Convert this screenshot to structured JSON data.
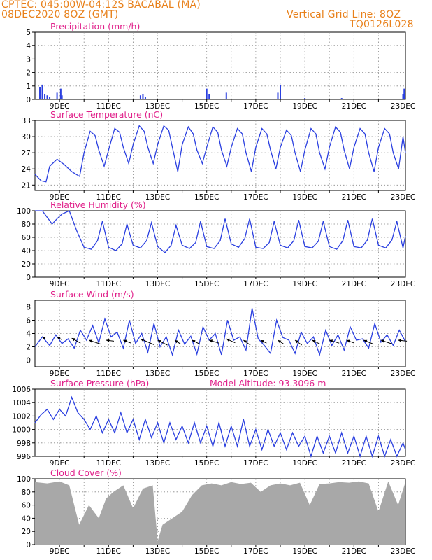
{
  "header": {
    "line1": "CPTEC:   045:00W-04:12S   BACABAL (MA)",
    "line2": "08DEC2020 8OZ (GMT)",
    "grid_note": "Vertical Grid Line: 8OZ",
    "run_code": "TQ0126L028"
  },
  "altitude_text": "Model Altitude: 93.3096 m",
  "colors": {
    "header": "#e8801a",
    "title": "#e0208a",
    "line": "#2a3fe0",
    "cloud_fill": "#a8a8a8",
    "grid": "#888888"
  },
  "x_ticks": [
    "9DEC",
    "11DEC",
    "13DEC",
    "15DEC",
    "17DEC",
    "19DEC",
    "21DEC",
    "23DEC"
  ],
  "chart_data": [
    {
      "id": "precip",
      "type": "bar",
      "title": "Precipitation (mm/h)",
      "ylim": [
        0,
        5
      ],
      "yticks": [
        0,
        1,
        2,
        3,
        4,
        5
      ],
      "grid": true,
      "x": [
        8.2,
        8.3,
        8.4,
        8.5,
        8.6,
        8.9,
        9.05,
        9.1,
        12.3,
        12.4,
        12.5,
        15.0,
        15.1,
        15.8,
        17.9,
        18.0,
        19.0,
        20.5,
        23.0,
        23.05
      ],
      "values": [
        0.9,
        1.1,
        0.4,
        0.3,
        0.2,
        0.5,
        0.8,
        0.3,
        0.3,
        0.4,
        0.2,
        0.8,
        0.4,
        0.5,
        0.5,
        1.1,
        0.1,
        0.1,
        0.4,
        0.8
      ]
    },
    {
      "id": "temp",
      "type": "line",
      "title": "Surface Temperature (nC)",
      "ylim": [
        20,
        33
      ],
      "yticks": [
        21,
        24,
        27,
        30,
        33
      ],
      "grid": true,
      "x": [
        8.0,
        8.25,
        8.45,
        8.6,
        8.9,
        9.2,
        9.5,
        9.82,
        10.0,
        10.25,
        10.45,
        10.6,
        10.82,
        11.0,
        11.25,
        11.45,
        11.6,
        11.82,
        12.0,
        12.25,
        12.45,
        12.6,
        12.82,
        13.0,
        13.25,
        13.45,
        13.6,
        13.82,
        14.0,
        14.25,
        14.45,
        14.6,
        14.82,
        15.0,
        15.25,
        15.45,
        15.6,
        15.82,
        16.0,
        16.25,
        16.45,
        16.6,
        16.82,
        17.0,
        17.25,
        17.45,
        17.6,
        17.82,
        18.0,
        18.25,
        18.45,
        18.6,
        18.82,
        19.0,
        19.25,
        19.45,
        19.6,
        19.82,
        20.0,
        20.25,
        20.45,
        20.6,
        20.82,
        21.0,
        21.25,
        21.45,
        21.6,
        21.82,
        22.0,
        22.25,
        22.45,
        22.6,
        22.82,
        23.0,
        23.1
      ],
      "values": [
        23.0,
        21.8,
        21.6,
        24.5,
        25.8,
        24.8,
        23.5,
        22.6,
        27.0,
        31.0,
        30.2,
        27.5,
        24.5,
        27.5,
        31.5,
        30.8,
        28.0,
        25.0,
        28.5,
        32.0,
        31.0,
        28.0,
        25.0,
        28.5,
        32.0,
        31.2,
        28.0,
        23.5,
        28.5,
        31.8,
        30.5,
        27.5,
        25.0,
        28.0,
        31.8,
        30.8,
        27.5,
        24.5,
        28.0,
        31.5,
        30.5,
        27.0,
        23.5,
        28.0,
        31.5,
        30.5,
        27.5,
        24.0,
        28.0,
        31.2,
        30.2,
        27.0,
        23.5,
        27.5,
        31.5,
        30.5,
        27.0,
        24.0,
        28.0,
        31.8,
        30.8,
        27.5,
        24.0,
        28.0,
        31.5,
        30.5,
        27.0,
        23.5,
        28.0,
        31.5,
        30.5,
        27.0,
        24.0,
        30.0,
        27.0
      ]
    },
    {
      "id": "rh",
      "type": "line",
      "title": "Relative Humidity (%)",
      "ylim": [
        0,
        100
      ],
      "yticks": [
        0,
        20,
        40,
        60,
        80,
        100
      ],
      "grid": true,
      "x": [
        8.0,
        8.3,
        8.5,
        8.7,
        8.9,
        9.1,
        9.4,
        9.7,
        10.0,
        10.3,
        10.55,
        10.75,
        11.0,
        11.3,
        11.55,
        11.75,
        12.0,
        12.3,
        12.55,
        12.75,
        13.0,
        13.3,
        13.55,
        13.75,
        14.0,
        14.3,
        14.55,
        14.75,
        15.0,
        15.3,
        15.55,
        15.75,
        16.0,
        16.3,
        16.55,
        16.75,
        17.0,
        17.3,
        17.55,
        17.75,
        18.0,
        18.3,
        18.55,
        18.75,
        19.0,
        19.3,
        19.55,
        19.75,
        20.0,
        20.3,
        20.55,
        20.75,
        21.0,
        21.3,
        21.55,
        21.75,
        22.0,
        22.3,
        22.55,
        22.75,
        23.0,
        23.1
      ],
      "values": [
        100,
        100,
        90,
        80,
        88,
        95,
        100,
        70,
        45,
        42,
        55,
        84,
        45,
        40,
        50,
        80,
        48,
        44,
        55,
        82,
        46,
        37,
        48,
        78,
        48,
        43,
        52,
        84,
        46,
        43,
        55,
        88,
        50,
        45,
        58,
        88,
        45,
        43,
        52,
        84,
        48,
        44,
        55,
        86,
        46,
        44,
        54,
        84,
        46,
        42,
        55,
        86,
        46,
        44,
        56,
        88,
        48,
        44,
        56,
        84,
        44,
        62
      ]
    },
    {
      "id": "wind",
      "type": "line",
      "title": "Surface Wind (m/s)",
      "ylim": [
        -1,
        9
      ],
      "yticks": [
        0,
        2,
        4,
        6,
        8
      ],
      "grid": true,
      "x": [
        8.0,
        8.3,
        8.6,
        8.85,
        9.1,
        9.35,
        9.6,
        9.85,
        10.1,
        10.35,
        10.6,
        10.85,
        11.1,
        11.35,
        11.6,
        11.85,
        12.1,
        12.35,
        12.6,
        12.85,
        13.1,
        13.35,
        13.6,
        13.85,
        14.1,
        14.35,
        14.6,
        14.85,
        15.1,
        15.35,
        15.6,
        15.85,
        16.1,
        16.35,
        16.6,
        16.85,
        17.1,
        17.35,
        17.6,
        17.85,
        18.1,
        18.35,
        18.6,
        18.85,
        19.1,
        19.35,
        19.6,
        19.85,
        20.1,
        20.35,
        20.6,
        20.85,
        21.1,
        21.35,
        21.6,
        21.85,
        22.1,
        22.35,
        22.6,
        22.85,
        23.1
      ],
      "values": [
        2.0,
        3.5,
        2.2,
        3.8,
        2.5,
        3.2,
        1.8,
        4.5,
        3.0,
        5.2,
        2.6,
        6.2,
        3.5,
        4.2,
        1.8,
        6.0,
        2.5,
        4.0,
        1.2,
        5.5,
        2.0,
        3.5,
        0.8,
        4.5,
        2.4,
        3.6,
        0.9,
        5.0,
        3.0,
        4.0,
        0.8,
        6.0,
        3.0,
        3.5,
        1.5,
        7.8,
        3.2,
        2.2,
        1.0,
        6.0,
        3.4,
        3.0,
        1.0,
        4.2,
        2.5,
        3.5,
        0.8,
        4.5,
        2.2,
        3.8,
        1.5,
        5.0,
        3.0,
        3.2,
        1.8,
        5.5,
        2.7,
        3.8,
        2.2,
        4.5,
        2.8
      ]
    },
    {
      "id": "pressure",
      "type": "line",
      "title": "Surface Pressure (hPa)",
      "ylim": [
        996,
        1006
      ],
      "yticks": [
        996,
        998,
        1000,
        1002,
        1004,
        1006
      ],
      "grid": true,
      "x": [
        8.0,
        8.25,
        8.5,
        8.75,
        9.0,
        9.25,
        9.5,
        9.75,
        10.0,
        10.25,
        10.5,
        10.75,
        11.0,
        11.25,
        11.5,
        11.75,
        12.0,
        12.25,
        12.5,
        12.75,
        13.0,
        13.25,
        13.5,
        13.75,
        14.0,
        14.25,
        14.5,
        14.75,
        15.0,
        15.25,
        15.5,
        15.75,
        16.0,
        16.25,
        16.5,
        16.75,
        17.0,
        17.25,
        17.5,
        17.75,
        18.0,
        18.25,
        18.5,
        18.75,
        19.0,
        19.25,
        19.5,
        19.75,
        20.0,
        20.25,
        20.5,
        20.75,
        21.0,
        21.25,
        21.5,
        21.75,
        22.0,
        22.25,
        22.5,
        22.75,
        23.0,
        23.1
      ],
      "values": [
        1001.0,
        1002.2,
        1003.0,
        1001.5,
        1003.0,
        1002.0,
        1004.8,
        1002.5,
        1001.5,
        1000.0,
        1002.0,
        999.5,
        1001.5,
        999.5,
        1002.5,
        999.5,
        1001.5,
        998.5,
        1001.5,
        998.8,
        1001.0,
        998.0,
        1001.0,
        998.5,
        1000.5,
        998.0,
        1001.0,
        998.0,
        1000.5,
        997.5,
        1001.0,
        997.5,
        1000.5,
        997.5,
        1001.5,
        997.5,
        1000.0,
        997.0,
        1000.0,
        997.5,
        999.5,
        997.0,
        999.5,
        997.5,
        999.0,
        996.0,
        999.0,
        996.5,
        999.0,
        996.5,
        999.5,
        996.5,
        999.0,
        996.0,
        999.0,
        996.0,
        999.0,
        996.0,
        998.5,
        996.0,
        998.0,
        997.0
      ]
    },
    {
      "id": "cloud",
      "type": "area",
      "title": "Cloud Cover (%)",
      "ylim": [
        0,
        100
      ],
      "yticks": [
        0,
        20,
        40,
        60,
        80,
        100
      ],
      "grid": true,
      "x": [
        8.0,
        8.5,
        9.0,
        9.4,
        9.8,
        10.2,
        10.6,
        10.9,
        11.2,
        11.6,
        12.0,
        12.4,
        12.8,
        13.0,
        13.2,
        13.6,
        14.0,
        14.4,
        14.8,
        15.2,
        15.6,
        16.0,
        16.4,
        16.8,
        17.2,
        17.6,
        18.0,
        18.4,
        18.8,
        19.2,
        19.6,
        20.0,
        20.4,
        20.8,
        21.2,
        21.6,
        22.0,
        22.4,
        22.8,
        23.1
      ],
      "values": [
        95,
        93,
        96,
        90,
        30,
        60,
        40,
        70,
        80,
        90,
        55,
        85,
        90,
        5,
        30,
        40,
        50,
        75,
        90,
        93,
        90,
        95,
        92,
        94,
        80,
        90,
        93,
        90,
        94,
        60,
        92,
        93,
        95,
        94,
        96,
        93,
        50,
        96,
        60,
        95
      ]
    }
  ],
  "wind_arrows": [
    {
      "x": 8.3,
      "y": 3.5,
      "u": 2,
      "v": -1
    },
    {
      "x": 8.9,
      "y": 3.5,
      "u": 5,
      "v": -3
    },
    {
      "x": 9.5,
      "y": 3.3,
      "u": 9,
      "v": -5
    },
    {
      "x": 10.2,
      "y": 3.0,
      "u": 12,
      "v": -4
    },
    {
      "x": 10.9,
      "y": 3.0,
      "u": 8,
      "v": -1
    },
    {
      "x": 11.6,
      "y": 3.0,
      "u": 8,
      "v": -3
    },
    {
      "x": 12.3,
      "y": 3.2,
      "u": 14,
      "v": -6
    },
    {
      "x": 13.0,
      "y": 3.0,
      "u": 10,
      "v": -5
    },
    {
      "x": 13.7,
      "y": 3.0,
      "u": 6,
      "v": -4
    },
    {
      "x": 14.4,
      "y": 3.0,
      "u": 8,
      "v": -4
    },
    {
      "x": 15.1,
      "y": 3.0,
      "u": 10,
      "v": -3
    },
    {
      "x": 15.8,
      "y": 3.2,
      "u": 9,
      "v": -4
    },
    {
      "x": 16.5,
      "y": 3.0,
      "u": 7,
      "v": -5
    },
    {
      "x": 17.2,
      "y": 3.0,
      "u": 6,
      "v": -3
    },
    {
      "x": 17.9,
      "y": 3.0,
      "u": 6,
      "v": -4
    },
    {
      "x": 18.6,
      "y": 3.0,
      "u": 7,
      "v": -5
    },
    {
      "x": 19.3,
      "y": 3.0,
      "u": 8,
      "v": -4
    },
    {
      "x": 20.0,
      "y": 3.0,
      "u": 10,
      "v": -3
    },
    {
      "x": 20.7,
      "y": 3.0,
      "u": 8,
      "v": -3
    },
    {
      "x": 21.4,
      "y": 3.0,
      "u": 10,
      "v": -4
    },
    {
      "x": 22.1,
      "y": 3.0,
      "u": 12,
      "v": -4
    },
    {
      "x": 22.8,
      "y": 3.0,
      "u": 9,
      "v": -1
    }
  ]
}
